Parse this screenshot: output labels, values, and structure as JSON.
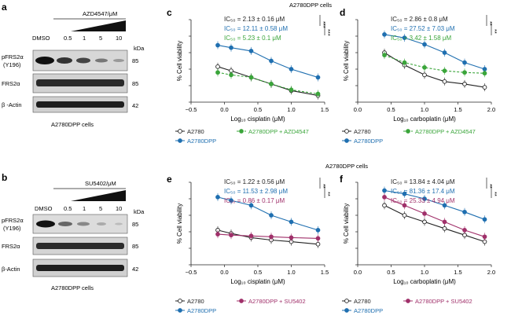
{
  "colors": {
    "black": "#222222",
    "blue": "#1f6fb0",
    "green": "#3aa53a",
    "magenta": "#a0306a",
    "gray": "#555555"
  },
  "panel_a": {
    "letter": "a",
    "treatment": "AZD4547/μM",
    "doses": [
      "DMSO",
      "0.5",
      "1",
      "5",
      "10"
    ],
    "kda_label": "kDa",
    "bands": [
      {
        "label": "pFRS2α",
        "sublabel": "(Y196)",
        "kda": "85"
      },
      {
        "label": "FRS2α",
        "sublabel": "",
        "kda": "85"
      },
      {
        "label": "β -Actin",
        "sublabel": "",
        "kda": "42"
      }
    ],
    "cells": "A2780DPP cells"
  },
  "panel_b": {
    "letter": "b",
    "treatment": "SU5402/μM",
    "doses": [
      "DMSO",
      "0.5",
      "1",
      "5",
      "10"
    ],
    "kda_label": "kDa",
    "bands": [
      {
        "label": "pFRS2α",
        "sublabel": "(Y196)",
        "kda": "85"
      },
      {
        "label": "FRS2α",
        "sublabel": "",
        "kda": "85"
      },
      {
        "label": "β-Actin",
        "sublabel": "",
        "kda": "42"
      }
    ],
    "cells": "A2780DPP cells"
  },
  "top_cells_label": "A2780DPP cells",
  "mid_cells_label": "A2780DPP cells",
  "chart_data": [
    {
      "panel": "c",
      "type": "line",
      "xlabel": "Log₁₀ cisplatin (μM)",
      "ylabel": "% Cell viability",
      "xlim": [
        -0.5,
        1.5
      ],
      "ylim": [
        0,
        100
      ],
      "xticks": [
        "−0.5",
        "0.0",
        "0.5",
        "1.0",
        "1.5"
      ],
      "ic50": [
        {
          "text": "IC₅₀ = 2.13 ± 0.16 μM",
          "color": "black"
        },
        {
          "text": "IC₅₀ = 12.11 ± 0.58 μM",
          "color": "blue"
        },
        {
          "text": "IC₅₀ = 5.23 ± 0.1 μM",
          "color": "green"
        }
      ],
      "sig": [
        "***",
        "***"
      ],
      "legend": [
        {
          "name": "A2780",
          "color": "black",
          "style": "open"
        },
        {
          "name": "A2780DPP + AZD4547",
          "color": "green",
          "style": "dashed"
        },
        {
          "name": "A2780DPP",
          "color": "blue",
          "style": "filled"
        }
      ],
      "series": [
        {
          "name": "A2780",
          "color": "black",
          "x": [
            -0.1,
            0.1,
            0.4,
            0.7,
            1.0,
            1.4
          ],
          "y": [
            43,
            38,
            30,
            22,
            14,
            8
          ]
        },
        {
          "name": "A2780DPP",
          "color": "blue",
          "x": [
            -0.1,
            0.1,
            0.4,
            0.7,
            1.0,
            1.4
          ],
          "y": [
            69,
            66,
            62,
            50,
            40,
            30
          ]
        },
        {
          "name": "A2780DPP + AZD4547",
          "color": "green",
          "x": [
            -0.1,
            0.1,
            0.4,
            0.7,
            1.0,
            1.4
          ],
          "y": [
            36,
            33,
            30,
            22,
            15,
            10
          ]
        }
      ]
    },
    {
      "panel": "d",
      "type": "line",
      "xlabel": "Log₁₀ carboplatin (μM)",
      "ylabel": "% Cell viability",
      "xlim": [
        0,
        2
      ],
      "ylim": [
        0,
        100
      ],
      "xticks": [
        "0.0",
        "0.5",
        "1.0",
        "1.5",
        "2.0"
      ],
      "ic50": [
        {
          "text": "IC₅₀ = 2.86 ± 0.8 μM",
          "color": "black"
        },
        {
          "text": "IC₅₀ = 27.52 ± 7.03 μM",
          "color": "blue"
        },
        {
          "text": "IC₅₀ = 3.42 ± 1.58 μM",
          "color": "green"
        }
      ],
      "sig": [
        "**",
        "**"
      ],
      "legend": [
        {
          "name": "A2780",
          "color": "black",
          "style": "open"
        },
        {
          "name": "A2780DPP + AZD4547",
          "color": "green",
          "style": "dashed"
        },
        {
          "name": "A2780DPP",
          "color": "blue",
          "style": "filled"
        }
      ],
      "series": [
        {
          "name": "A2780",
          "color": "black",
          "x": [
            0.4,
            0.7,
            1.0,
            1.3,
            1.6,
            1.9
          ],
          "y": [
            60,
            45,
            33,
            25,
            22,
            18
          ]
        },
        {
          "name": "A2780DPP",
          "color": "blue",
          "x": [
            0.4,
            0.7,
            1.0,
            1.3,
            1.6,
            1.9
          ],
          "y": [
            82,
            78,
            70,
            60,
            48,
            40
          ]
        },
        {
          "name": "A2780DPP + AZD4547",
          "color": "green",
          "x": [
            0.4,
            0.7,
            1.0,
            1.3,
            1.6,
            1.9
          ],
          "y": [
            57,
            48,
            42,
            38,
            36,
            35
          ]
        }
      ]
    },
    {
      "panel": "e",
      "type": "line",
      "xlabel": "Log₁₀ cisplatin (μM)",
      "ylabel": "% Cell viability",
      "xlim": [
        -0.5,
        1.5
      ],
      "ylim": [
        0,
        100
      ],
      "xticks": [
        "−0.5",
        "0.0",
        "0.5",
        "1.0",
        "1.5"
      ],
      "ic50": [
        {
          "text": "IC₅₀ = 1.22 ± 0.56 μM",
          "color": "black"
        },
        {
          "text": "IC₅₀ = 11.53 ± 2.98 μM",
          "color": "blue"
        },
        {
          "text": "IC₅₀ = 0.86 ± 0.17 μM",
          "color": "magenta"
        }
      ],
      "sig": [
        "**",
        "**"
      ],
      "legend": [
        {
          "name": "A2780",
          "color": "black",
          "style": "open"
        },
        {
          "name": "A2780DPP + SU5402",
          "color": "magenta",
          "style": "filled"
        },
        {
          "name": "A2780DPP",
          "color": "blue",
          "style": "filled"
        }
      ],
      "series": [
        {
          "name": "A2780",
          "color": "black",
          "x": [
            -0.1,
            0.1,
            0.4,
            0.7,
            1.0,
            1.4
          ],
          "y": [
            42,
            38,
            33,
            30,
            28,
            25
          ]
        },
        {
          "name": "A2780DPP",
          "color": "blue",
          "x": [
            -0.1,
            0.1,
            0.4,
            0.7,
            1.0,
            1.4
          ],
          "y": [
            82,
            78,
            72,
            60,
            52,
            42
          ]
        },
        {
          "name": "A2780DPP + SU5402",
          "color": "magenta",
          "x": [
            -0.1,
            0.1,
            0.4,
            0.7,
            1.0,
            1.4
          ],
          "y": [
            37,
            36,
            35,
            34,
            33,
            32
          ]
        }
      ]
    },
    {
      "panel": "f",
      "type": "line",
      "xlabel": "Log₁₀ carboplatin (μM)",
      "ylabel": "% Cell viability",
      "xlim": [
        0,
        2
      ],
      "ylim": [
        0,
        100
      ],
      "xticks": [
        "0.0",
        "0.5",
        "1.0",
        "1.5",
        "2.0"
      ],
      "ic50": [
        {
          "text": "IC₅₀ = 13.84 ± 4.04 μM",
          "color": "black"
        },
        {
          "text": "IC₅₀ = 81.36 ± 17.4 μM",
          "color": "blue"
        },
        {
          "text": "IC₅₀ = 25.33 ± 4.94 μM",
          "color": "magenta"
        }
      ],
      "sig": [
        "**",
        "**"
      ],
      "legend": [
        {
          "name": "A2780",
          "color": "black",
          "style": "open"
        },
        {
          "name": "A2780DPP + SU5402",
          "color": "magenta",
          "style": "filled"
        },
        {
          "name": "A2780DPP",
          "color": "blue",
          "style": "filled"
        }
      ],
      "series": [
        {
          "name": "A2780",
          "color": "black",
          "x": [
            0.4,
            0.7,
            1.0,
            1.3,
            1.6,
            1.9
          ],
          "y": [
            72,
            60,
            52,
            44,
            36,
            28
          ]
        },
        {
          "name": "A2780DPP",
          "color": "blue",
          "x": [
            0.4,
            0.7,
            1.0,
            1.3,
            1.6,
            1.9
          ],
          "y": [
            90,
            86,
            80,
            72,
            64,
            55
          ]
        },
        {
          "name": "A2780DPP + SU5402",
          "color": "magenta",
          "x": [
            0.4,
            0.7,
            1.0,
            1.3,
            1.6,
            1.9
          ],
          "y": [
            82,
            72,
            62,
            52,
            42,
            34
          ]
        }
      ]
    }
  ]
}
